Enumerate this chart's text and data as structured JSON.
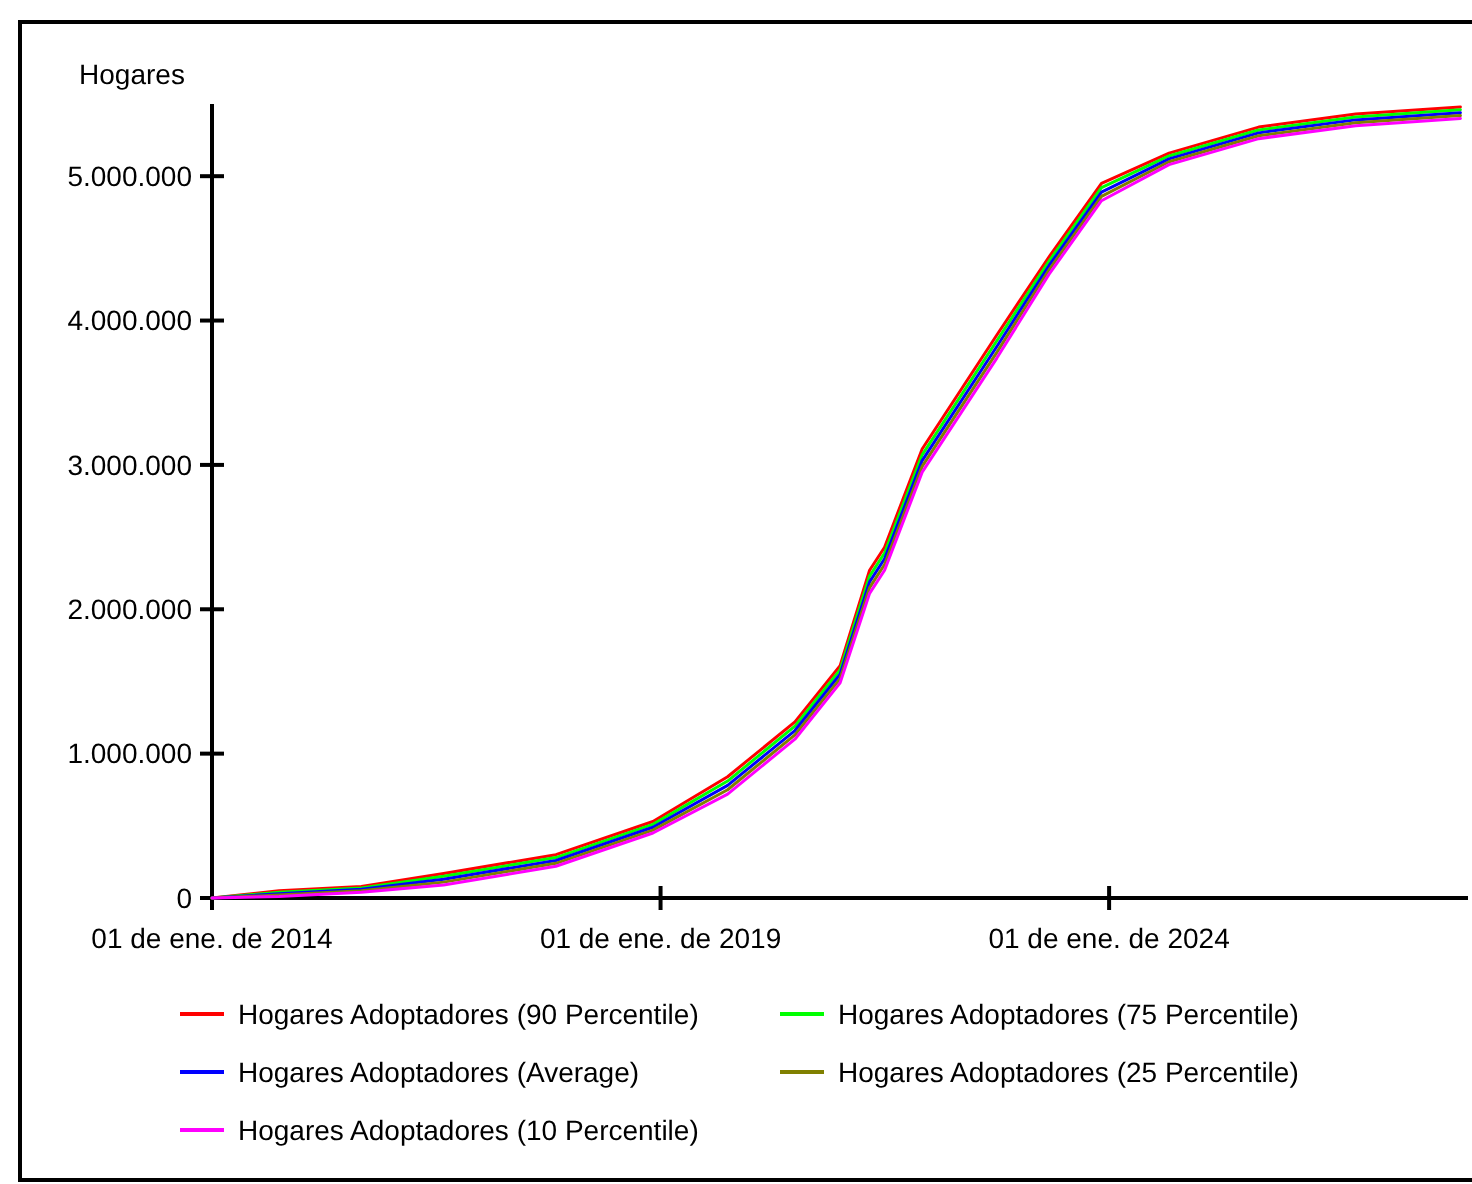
{
  "chart_data": {
    "type": "line",
    "ylabel": "Hogares",
    "x": [
      "2014-01",
      "2014-10",
      "2015-09",
      "2016-08",
      "2017-11",
      "2018-12",
      "2019-10",
      "2020-07",
      "2021-01",
      "2021-05",
      "2021-07",
      "2021-12",
      "2022-10",
      "2023-05",
      "2023-12",
      "2024-09",
      "2025-09",
      "2026-10",
      "2027-12"
    ],
    "series": [
      {
        "name": "Hogares Adoptadores (90 Percentile)",
        "color": "#ff0000",
        "values": [
          0,
          50000,
          80000,
          170000,
          300000,
          530000,
          840000,
          1220000,
          1610000,
          2270000,
          2430000,
          3110000,
          3900000,
          4440000,
          4950000,
          5160000,
          5340000,
          5430000,
          5480000
        ]
      },
      {
        "name": "Hogares Adoptadores (75 Percentile)",
        "color": "#00ff00",
        "values": [
          0,
          40000,
          70000,
          150000,
          280000,
          510000,
          810000,
          1190000,
          1580000,
          2230000,
          2390000,
          3070000,
          3860000,
          4410000,
          4920000,
          5140000,
          5320000,
          5410000,
          5460000
        ]
      },
      {
        "name": "Hogares Adoptadores (Average)",
        "color": "#0000ff",
        "values": [
          0,
          30000,
          60000,
          130000,
          260000,
          490000,
          780000,
          1160000,
          1550000,
          2190000,
          2350000,
          3030000,
          3820000,
          4380000,
          4890000,
          5120000,
          5300000,
          5390000,
          5440000
        ]
      },
      {
        "name": "Hogares Adoptadores (25 Percentile)",
        "color": "#808000",
        "values": [
          0,
          20000,
          50000,
          110000,
          240000,
          470000,
          750000,
          1130000,
          1520000,
          2150000,
          2310000,
          2990000,
          3780000,
          4350000,
          4860000,
          5100000,
          5280000,
          5370000,
          5420000
        ]
      },
      {
        "name": "Hogares Adoptadores (10 Percentile)",
        "color": "#ff00ff",
        "values": [
          0,
          10000,
          40000,
          90000,
          220000,
          450000,
          720000,
          1100000,
          1490000,
          2110000,
          2270000,
          2950000,
          3740000,
          4320000,
          4830000,
          5080000,
          5260000,
          5350000,
          5400000
        ]
      }
    ],
    "xlim": [
      "2014-01-01",
      "2028-01-01"
    ],
    "xticks": [
      {
        "value": "2014-01-01",
        "label": "01 de ene. de 2014"
      },
      {
        "value": "2019-01-01",
        "label": "01 de ene. de 2019"
      },
      {
        "value": "2024-01-01",
        "label": "01 de ene. de 2024"
      }
    ],
    "ylim": [
      0,
      5500000
    ],
    "yticks": [
      0,
      {
        "value": 1000000,
        "label": "1.000.000"
      },
      {
        "value": 2000000,
        "label": "2.000.000"
      },
      {
        "value": 3000000,
        "label": "3.000.000"
      },
      {
        "value": 4000000,
        "label": "4.000.000"
      },
      {
        "value": 5000000,
        "label": "5.000.000"
      }
    ],
    "grid": false,
    "legend": "bottom",
    "marker": "none",
    "line_style": "solid"
  }
}
